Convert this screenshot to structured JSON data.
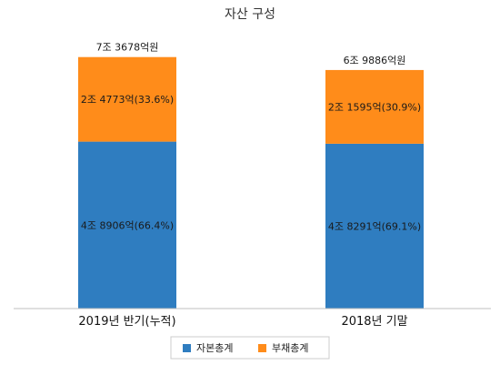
{
  "chart_data": {
    "type": "bar",
    "stacked": true,
    "title": "자산 구성",
    "categories": [
      "2019년 반기(누적)",
      "2018년 기말"
    ],
    "totals": [
      73678,
      69886
    ],
    "total_labels": [
      "7조 3678억원",
      "6조 9886억원"
    ],
    "series": [
      {
        "name": "자본총계",
        "color": "#2f7dc0",
        "values": [
          48906,
          48291
        ],
        "labels": [
          "4조 8906억(66.4%)",
          "4조 8291억(69.1%)"
        ]
      },
      {
        "name": "부채총계",
        "color": "#ff8c1a",
        "values": [
          24773,
          21595
        ],
        "labels": [
          "2조 4773억(33.6%)",
          "2조 1595억(30.9%)"
        ]
      }
    ],
    "unit": "억원",
    "ylim": [
      0,
      80000
    ],
    "legend_position": "bottom",
    "grid": false
  }
}
